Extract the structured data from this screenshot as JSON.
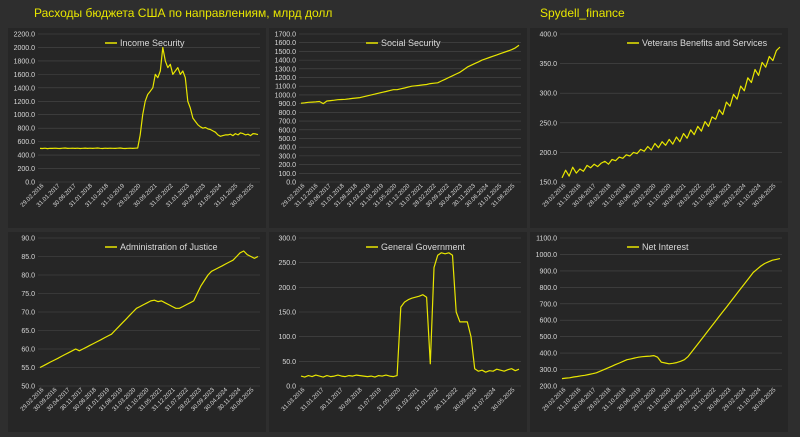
{
  "header": {
    "title": "Расходы бюджета США по направлениям, млрд долл",
    "source": "Spydell_finance"
  },
  "colors": {
    "line": "#e8e600",
    "background": "#262626",
    "page": "#2e2e2e",
    "grid": "#4a4a4a",
    "text": "#d9d9d9"
  },
  "chart_data": [
    {
      "type": "line",
      "title": "",
      "legend": "Income Security",
      "legend_position": "top-center",
      "grid": true,
      "ylim": [
        0,
        2200
      ],
      "yticks": [
        "0.0",
        "200.0",
        "400.0",
        "600.0",
        "800.0",
        "1000.0",
        "1200.0",
        "1400.0",
        "1600.0",
        "1800.0",
        "2000.0",
        "2200.0"
      ],
      "xticks": [
        "29.02.2016",
        "31.01.2017",
        "30.06.2017",
        "31.01.2018",
        "31.10.2018",
        "31.10.2019",
        "29.02.2020",
        "30.09.2021",
        "31.05.2022",
        "31.01.2023",
        "30.09.2023",
        "31.05.2024",
        "31.01.2025",
        "30.09.2025"
      ],
      "series": [
        {
          "values": [
            500,
            498,
            502,
            497,
            501,
            499,
            503,
            500,
            498,
            502,
            505,
            499,
            501,
            503,
            500,
            502,
            498,
            501,
            504,
            500,
            502,
            499,
            503,
            505,
            501,
            498,
            502,
            500,
            503,
            501,
            499,
            502,
            505,
            500,
            498,
            501,
            503,
            500,
            502,
            505,
            700,
            1000,
            1200,
            1300,
            1350,
            1400,
            1600,
            1550,
            1650,
            2000,
            1800,
            1700,
            1750,
            1600,
            1650,
            1700,
            1600,
            1650,
            1550,
            1200,
            1100,
            950,
            900,
            850,
            820,
            800,
            810,
            790,
            780,
            760,
            740,
            700,
            680,
            690,
            700,
            700,
            710,
            690,
            720,
            700,
            730,
            720,
            700,
            710,
            690,
            720,
            715,
            705
          ]
        }
      ]
    },
    {
      "type": "line",
      "title": "",
      "legend": "Social Security",
      "legend_position": "top-center",
      "grid": true,
      "ylim": [
        0,
        1700
      ],
      "yticks": [
        "0.0",
        "100.0",
        "200.0",
        "300.0",
        "400.0",
        "500.0",
        "600.0",
        "700.0",
        "800.0",
        "900.0",
        "1000.0",
        "1100.0",
        "1200.0",
        "1300.0",
        "1400.0",
        "1500.0",
        "1600.0",
        "1700.0"
      ],
      "xticks": [
        "29.02.2016",
        "31.12.2016",
        "30.06.2017",
        "31.01.2018",
        "31.08.2018",
        "31.03.2019",
        "31.10.2019",
        "31.05.2020",
        "31.12.2020",
        "31.07.2021",
        "28.02.2022",
        "30.09.2022",
        "30.04.2023",
        "30.11.2023",
        "30.06.2024",
        "31.01.2025",
        "31.08.2025"
      ],
      "series": [
        {
          "values": [
            905,
            910,
            915,
            918,
            920,
            925,
            900,
            930,
            935,
            940,
            945,
            948,
            950,
            955,
            960,
            965,
            970,
            980,
            990,
            1000,
            1010,
            1020,
            1030,
            1040,
            1050,
            1060,
            1060,
            1070,
            1080,
            1090,
            1100,
            1105,
            1110,
            1115,
            1120,
            1130,
            1135,
            1140,
            1160,
            1180,
            1200,
            1220,
            1240,
            1260,
            1290,
            1320,
            1340,
            1360,
            1380,
            1400,
            1415,
            1430,
            1445,
            1460,
            1475,
            1490,
            1505,
            1520,
            1540,
            1570
          ]
        }
      ]
    },
    {
      "type": "line",
      "title": "",
      "legend": "Veterans Benefits and Services",
      "legend_position": "top-center",
      "grid": true,
      "ylim": [
        150,
        400
      ],
      "yticks": [
        "150.0",
        "200.0",
        "250.0",
        "300.0",
        "350.0",
        "400.0"
      ],
      "xticks": [
        "29.02.2016",
        "31.10.2016",
        "30.06.2017",
        "28.02.2018",
        "31.10.2018",
        "30.06.2019",
        "29.02.2020",
        "31.10.2020",
        "30.06.2021",
        "28.02.2022",
        "31.10.2022",
        "30.06.2023",
        "29.02.2024",
        "31.10.2024",
        "30.06.2025"
      ],
      "series": [
        {
          "values": [
            157,
            170,
            160,
            175,
            165,
            172,
            168,
            178,
            174,
            180,
            176,
            182,
            185,
            180,
            188,
            186,
            192,
            190,
            196,
            194,
            200,
            198,
            205,
            202,
            210,
            204,
            215,
            208,
            218,
            212,
            222,
            214,
            226,
            218,
            232,
            224,
            238,
            230,
            244,
            236,
            252,
            244,
            260,
            256,
            272,
            264,
            285,
            278,
            298,
            290,
            312,
            304,
            326,
            318,
            340,
            330,
            352,
            344,
            362,
            355,
            372,
            378
          ]
        }
      ]
    },
    {
      "type": "line",
      "title": "",
      "legend": "Administration of Justice",
      "legend_position": "top-center",
      "grid": true,
      "ylim": [
        50,
        90
      ],
      "yticks": [
        "50.0",
        "55.0",
        "60.0",
        "65.0",
        "70.0",
        "75.0",
        "80.0",
        "85.0",
        "90.0"
      ],
      "xticks": [
        "29.02.2016",
        "30.09.2016",
        "30.04.2017",
        "30.11.2017",
        "30.06.2018",
        "31.01.2019",
        "31.08.2019",
        "31.03.2020",
        "31.10.2020",
        "31.05.2021",
        "31.12.2021",
        "31.07.2022",
        "28.02.2023",
        "30.09.2023",
        "30.04.2024",
        "30.11.2024",
        "30.06.2025"
      ],
      "series": [
        {
          "values": [
            55,
            55.5,
            56,
            56.5,
            57,
            57.5,
            58,
            58.5,
            59,
            59.5,
            60,
            59.5,
            60,
            60.5,
            61,
            61.5,
            62,
            62.5,
            63,
            63.5,
            64,
            65,
            66,
            67,
            68,
            69,
            70,
            71,
            71.5,
            72,
            72.5,
            73,
            73.2,
            72.8,
            73,
            72.5,
            72,
            71.5,
            71,
            71,
            71.5,
            72,
            72.5,
            73,
            75,
            77,
            78.5,
            80,
            81,
            81.5,
            82,
            82.5,
            83,
            83.5,
            84,
            85,
            86,
            86.5,
            85.5,
            85,
            84.5,
            85
          ]
        }
      ]
    },
    {
      "type": "line",
      "title": "",
      "legend": "General Government",
      "legend_position": "top-center",
      "grid": true,
      "ylim": [
        0,
        300
      ],
      "yticks": [
        "0.0",
        "50.0",
        "100.0",
        "150.0",
        "200.0",
        "250.0",
        "300.0"
      ],
      "xticks": [
        "31.03.2016",
        "31.01.2017",
        "30.11.2017",
        "30.09.2018",
        "31.07.2019",
        "31.05.2020",
        "31.03.2021",
        "31.01.2022",
        "30.11.2022",
        "30.09.2023",
        "31.07.2024",
        "30.05.2025"
      ],
      "series": [
        {
          "values": [
            20,
            18,
            21,
            19,
            22,
            20,
            18,
            21,
            19,
            20,
            22,
            20,
            19,
            21,
            20,
            22,
            21,
            20,
            19,
            20,
            18,
            21,
            20,
            22,
            20,
            19,
            21,
            160,
            170,
            175,
            178,
            180,
            182,
            185,
            180,
            45,
            240,
            265,
            270,
            268,
            270,
            265,
            150,
            130,
            130,
            130,
            100,
            35,
            30,
            32,
            28,
            31,
            30,
            34,
            32,
            30,
            33,
            35,
            31,
            34
          ]
        }
      ]
    },
    {
      "type": "line",
      "title": "",
      "legend": "Net Interest",
      "legend_position": "top-center",
      "grid": true,
      "ylim": [
        200,
        1100
      ],
      "yticks": [
        "200.0",
        "300.0",
        "400.0",
        "500.0",
        "600.0",
        "700.0",
        "800.0",
        "900.0",
        "1000.0",
        "1100.0"
      ],
      "xticks": [
        "29.02.2016",
        "31.10.2016",
        "30.06.2017",
        "28.02.2018",
        "31.10.2018",
        "30.06.2019",
        "29.02.2020",
        "31.10.2020",
        "30.06.2021",
        "28.02.2022",
        "31.10.2022",
        "30.06.2023",
        "29.02.2024",
        "31.10.2024",
        "30.06.2025"
      ],
      "series": [
        {
          "values": [
            245,
            248,
            250,
            255,
            258,
            262,
            265,
            270,
            275,
            280,
            290,
            300,
            310,
            320,
            330,
            340,
            350,
            360,
            365,
            370,
            375,
            378,
            380,
            382,
            385,
            375,
            345,
            340,
            335,
            338,
            342,
            350,
            360,
            380,
            410,
            440,
            470,
            500,
            530,
            560,
            590,
            620,
            650,
            680,
            710,
            740,
            770,
            800,
            830,
            860,
            890,
            910,
            930,
            945,
            955,
            965,
            970,
            975
          ]
        }
      ]
    }
  ]
}
